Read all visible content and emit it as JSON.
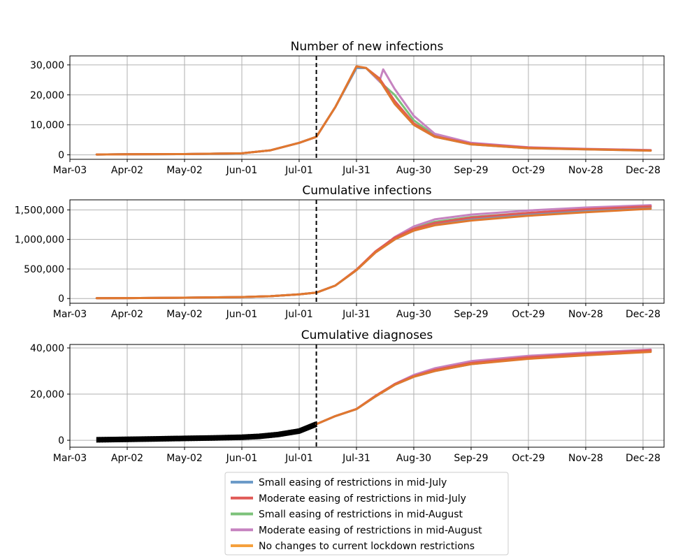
{
  "chart_data": [
    {
      "type": "line",
      "title": "Number of new infections",
      "x_tick_labels": [
        "Mar-03",
        "Apr-02",
        "May-02",
        "Jun-01",
        "Jul-01",
        "Jul-31",
        "Aug-30",
        "Sep-29",
        "Oct-29",
        "Nov-28",
        "Dec-28"
      ],
      "y_tick_labels": [
        "0",
        "10,000",
        "20,000",
        "30,000"
      ],
      "xlim": [
        "2020-03-03",
        "2021-01-08"
      ],
      "ylim": [
        -1500,
        33000
      ],
      "grid": true,
      "vline": "2020-07-10",
      "series": [
        {
          "name": "Small easing of restrictions in mid-July",
          "x": [
            "2020-03-17",
            "2020-04-02",
            "2020-05-02",
            "2020-06-01",
            "2020-06-16",
            "2020-07-01",
            "2020-07-10",
            "2020-07-20",
            "2020-07-31",
            "2020-08-05",
            "2020-08-12",
            "2020-08-20",
            "2020-08-30",
            "2020-09-10",
            "2020-09-29",
            "2020-10-29",
            "2020-11-28",
            "2021-01-01"
          ],
          "y": [
            100,
            200,
            250,
            500,
            1500,
            4000,
            6000,
            16000,
            29000,
            29000,
            25000,
            17000,
            10000,
            6000,
            3500,
            2200,
            1800,
            1400
          ]
        },
        {
          "name": "Moderate easing of restrictions in mid-July",
          "x": [
            "2020-03-17",
            "2020-04-02",
            "2020-05-02",
            "2020-06-01",
            "2020-06-16",
            "2020-07-01",
            "2020-07-10",
            "2020-07-20",
            "2020-07-31",
            "2020-08-05",
            "2020-08-12",
            "2020-08-20",
            "2020-08-30",
            "2020-09-10",
            "2020-09-29",
            "2020-10-29",
            "2020-11-28",
            "2021-01-01"
          ],
          "y": [
            100,
            200,
            250,
            500,
            1500,
            4000,
            6000,
            16000,
            29500,
            29000,
            25500,
            18000,
            10500,
            6200,
            3700,
            2400,
            1900,
            1500
          ]
        },
        {
          "name": "Small easing of restrictions in mid-August",
          "x": [
            "2020-03-17",
            "2020-04-02",
            "2020-05-02",
            "2020-06-01",
            "2020-06-16",
            "2020-07-01",
            "2020-07-10",
            "2020-07-20",
            "2020-07-31",
            "2020-08-05",
            "2020-08-12",
            "2020-08-20",
            "2020-08-30",
            "2020-09-10",
            "2020-09-29",
            "2020-10-29",
            "2020-11-28",
            "2021-01-01"
          ],
          "y": [
            100,
            200,
            250,
            500,
            1500,
            4000,
            6000,
            16000,
            29000,
            29000,
            24500,
            20000,
            11500,
            6500,
            3800,
            2400,
            1900,
            1500
          ]
        },
        {
          "name": "Moderate easing of restrictions in mid-August",
          "x": [
            "2020-03-17",
            "2020-04-02",
            "2020-05-02",
            "2020-06-01",
            "2020-06-16",
            "2020-07-01",
            "2020-07-10",
            "2020-07-20",
            "2020-07-31",
            "2020-08-05",
            "2020-08-12",
            "2020-08-14",
            "2020-08-20",
            "2020-08-30",
            "2020-09-10",
            "2020-09-29",
            "2020-10-29",
            "2020-11-28",
            "2021-01-01"
          ],
          "y": [
            100,
            200,
            250,
            500,
            1500,
            4000,
            6000,
            16000,
            29000,
            29000,
            24500,
            28500,
            22000,
            13000,
            7000,
            4000,
            2500,
            2000,
            1600
          ]
        },
        {
          "name": "No changes to current lockdown restrictions",
          "x": [
            "2020-03-17",
            "2020-04-02",
            "2020-05-02",
            "2020-06-01",
            "2020-06-16",
            "2020-07-01",
            "2020-07-10",
            "2020-07-20",
            "2020-07-31",
            "2020-08-05",
            "2020-08-12",
            "2020-08-20",
            "2020-08-30",
            "2020-09-10",
            "2020-09-29",
            "2020-10-29",
            "2020-11-28",
            "2021-01-01"
          ],
          "y": [
            100,
            200,
            250,
            500,
            1500,
            4000,
            6000,
            16000,
            29500,
            29000,
            25000,
            17000,
            10000,
            6000,
            3500,
            2200,
            1800,
            1400
          ]
        }
      ]
    },
    {
      "type": "line",
      "title": "Cumulative infections",
      "x_tick_labels": [
        "Mar-03",
        "Apr-02",
        "May-02",
        "Jun-01",
        "Jul-01",
        "Jul-31",
        "Aug-30",
        "Sep-29",
        "Oct-29",
        "Nov-28",
        "Dec-28"
      ],
      "y_tick_labels": [
        "0",
        "500,000",
        "1,000,000",
        "1,500,000"
      ],
      "xlim": [
        "2020-03-03",
        "2021-01-08"
      ],
      "ylim": [
        -80000,
        1670000
      ],
      "grid": true,
      "vline": "2020-07-10",
      "series": [
        {
          "name": "Small easing of restrictions in mid-July",
          "x": [
            "2020-03-17",
            "2020-04-02",
            "2020-05-02",
            "2020-06-01",
            "2020-06-16",
            "2020-07-01",
            "2020-07-10",
            "2020-07-20",
            "2020-07-31",
            "2020-08-10",
            "2020-08-20",
            "2020-08-30",
            "2020-09-10",
            "2020-09-29",
            "2020-10-29",
            "2020-11-28",
            "2021-01-01"
          ],
          "y": [
            5000,
            8000,
            15000,
            25000,
            40000,
            70000,
            100000,
            220000,
            480000,
            780000,
            1000000,
            1150000,
            1250000,
            1340000,
            1420000,
            1480000,
            1540000
          ]
        },
        {
          "name": "Moderate easing of restrictions in mid-July",
          "x": [
            "2020-03-17",
            "2020-04-02",
            "2020-05-02",
            "2020-06-01",
            "2020-06-16",
            "2020-07-01",
            "2020-07-10",
            "2020-07-20",
            "2020-07-31",
            "2020-08-10",
            "2020-08-20",
            "2020-08-30",
            "2020-09-10",
            "2020-09-29",
            "2020-10-29",
            "2020-11-28",
            "2021-01-01"
          ],
          "y": [
            5000,
            8000,
            15000,
            25000,
            40000,
            70000,
            100000,
            220000,
            490000,
            800000,
            1030000,
            1180000,
            1280000,
            1370000,
            1450000,
            1510000,
            1560000
          ]
        },
        {
          "name": "Small easing of restrictions in mid-August",
          "x": [
            "2020-03-17",
            "2020-04-02",
            "2020-05-02",
            "2020-06-01",
            "2020-06-16",
            "2020-07-01",
            "2020-07-10",
            "2020-07-20",
            "2020-07-31",
            "2020-08-10",
            "2020-08-20",
            "2020-08-30",
            "2020-09-10",
            "2020-09-29",
            "2020-10-29",
            "2020-11-28",
            "2021-01-01"
          ],
          "y": [
            5000,
            8000,
            15000,
            25000,
            40000,
            70000,
            100000,
            220000,
            480000,
            790000,
            1020000,
            1190000,
            1300000,
            1380000,
            1450000,
            1510000,
            1560000
          ]
        },
        {
          "name": "Moderate easing of restrictions in mid-August",
          "x": [
            "2020-03-17",
            "2020-04-02",
            "2020-05-02",
            "2020-06-01",
            "2020-06-16",
            "2020-07-01",
            "2020-07-10",
            "2020-07-20",
            "2020-07-31",
            "2020-08-10",
            "2020-08-20",
            "2020-08-30",
            "2020-09-10",
            "2020-09-29",
            "2020-10-29",
            "2020-11-28",
            "2021-01-01"
          ],
          "y": [
            5000,
            8000,
            15000,
            25000,
            40000,
            70000,
            100000,
            220000,
            480000,
            790000,
            1040000,
            1220000,
            1340000,
            1420000,
            1490000,
            1540000,
            1580000
          ]
        },
        {
          "name": "No changes to current lockdown restrictions",
          "x": [
            "2020-03-17",
            "2020-04-02",
            "2020-05-02",
            "2020-06-01",
            "2020-06-16",
            "2020-07-01",
            "2020-07-10",
            "2020-07-20",
            "2020-07-31",
            "2020-08-10",
            "2020-08-20",
            "2020-08-30",
            "2020-09-10",
            "2020-09-29",
            "2020-10-29",
            "2020-11-28",
            "2021-01-01"
          ],
          "y": [
            5000,
            8000,
            15000,
            25000,
            40000,
            70000,
            100000,
            220000,
            480000,
            780000,
            1000000,
            1150000,
            1240000,
            1320000,
            1400000,
            1460000,
            1520000
          ]
        }
      ]
    },
    {
      "type": "line",
      "title": "Cumulative diagnoses",
      "x_tick_labels": [
        "Mar-03",
        "Apr-02",
        "May-02",
        "Jun-01",
        "Jul-01",
        "Jul-31",
        "Aug-30",
        "Sep-29",
        "Oct-29",
        "Nov-28",
        "Dec-28"
      ],
      "y_tick_labels": [
        "0",
        "20,000",
        "40,000"
      ],
      "xlim": [
        "2020-03-03",
        "2021-01-08"
      ],
      "ylim": [
        -3000,
        41500
      ],
      "grid": true,
      "vline": "2020-07-10",
      "observed": {
        "x": [
          "2020-03-17",
          "2020-04-02",
          "2020-04-17",
          "2020-05-02",
          "2020-05-17",
          "2020-06-01",
          "2020-06-10",
          "2020-06-20",
          "2020-07-01",
          "2020-07-10"
        ],
        "y": [
          200,
          400,
          600,
          800,
          1000,
          1300,
          1700,
          2500,
          4000,
          7000
        ]
      },
      "series": [
        {
          "name": "Small easing of restrictions in mid-July",
          "x": [
            "2020-07-10",
            "2020-07-20",
            "2020-07-31",
            "2020-08-10",
            "2020-08-20",
            "2020-08-30",
            "2020-09-10",
            "2020-09-29",
            "2020-10-29",
            "2020-11-28",
            "2021-01-01"
          ],
          "y": [
            7000,
            10500,
            13500,
            19000,
            24000,
            27500,
            30000,
            33000,
            35500,
            37000,
            38500
          ]
        },
        {
          "name": "Moderate easing of restrictions in mid-July",
          "x": [
            "2020-07-10",
            "2020-07-20",
            "2020-07-31",
            "2020-08-10",
            "2020-08-20",
            "2020-08-30",
            "2020-09-10",
            "2020-09-29",
            "2020-10-29",
            "2020-11-28",
            "2021-01-01"
          ],
          "y": [
            7000,
            10500,
            13600,
            19300,
            24300,
            27800,
            30500,
            33500,
            36000,
            37500,
            39000
          ]
        },
        {
          "name": "Small easing of restrictions in mid-August",
          "x": [
            "2020-07-10",
            "2020-07-20",
            "2020-07-31",
            "2020-08-10",
            "2020-08-20",
            "2020-08-30",
            "2020-09-10",
            "2020-09-29",
            "2020-10-29",
            "2020-11-28",
            "2021-01-01"
          ],
          "y": [
            7000,
            10500,
            13500,
            19000,
            24200,
            27900,
            30600,
            33600,
            36000,
            37500,
            39000
          ]
        },
        {
          "name": "Moderate easing of restrictions in mid-August",
          "x": [
            "2020-07-10",
            "2020-07-20",
            "2020-07-31",
            "2020-08-10",
            "2020-08-20",
            "2020-08-30",
            "2020-09-10",
            "2020-09-29",
            "2020-10-29",
            "2020-11-28",
            "2021-01-01"
          ],
          "y": [
            7000,
            10500,
            13500,
            19000,
            24400,
            28300,
            31200,
            34300,
            36600,
            38000,
            39300
          ]
        },
        {
          "name": "No changes to current lockdown restrictions",
          "x": [
            "2020-07-10",
            "2020-07-20",
            "2020-07-31",
            "2020-08-10",
            "2020-08-20",
            "2020-08-30",
            "2020-09-10",
            "2020-09-29",
            "2020-10-29",
            "2020-11-28",
            "2021-01-01"
          ],
          "y": [
            7000,
            10500,
            13500,
            19000,
            24000,
            27500,
            30000,
            33000,
            35300,
            36800,
            38300
          ]
        }
      ]
    }
  ],
  "legend": {
    "placement": "bottom-center",
    "entries": [
      {
        "label": "Small easing of restrictions in mid-July",
        "color": "#6c9bc8"
      },
      {
        "label": "Moderate easing of restrictions in mid-July",
        "color": "#e05a57"
      },
      {
        "label": "Small easing of restrictions in mid-August",
        "color": "#7cc27a"
      },
      {
        "label": "Moderate easing of restrictions in mid-August",
        "color": "#c683c0"
      },
      {
        "label": "No changes to current lockdown restrictions",
        "color": "#f5a03d"
      }
    ]
  },
  "colors": {
    "no_change_line": "#e0782e",
    "observed": "#000000",
    "vline": "#000000",
    "grid": "#b0b0b0"
  }
}
